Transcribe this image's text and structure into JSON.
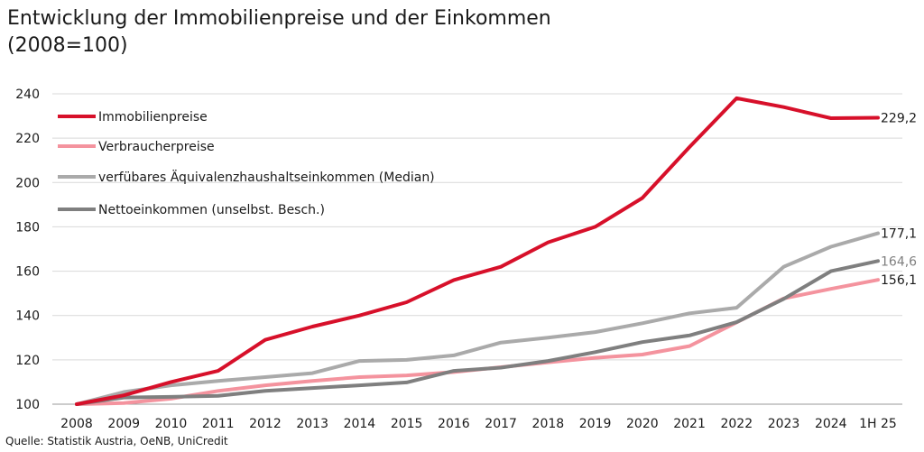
{
  "title_line1": "Entwicklung der Immobilienpreise und der Einkommen",
  "title_line2": "(2008=100)",
  "source": "Quelle: Statistik Austria, OeNB, UniCredit",
  "chart_data": {
    "type": "line",
    "x": [
      "2008",
      "2009",
      "2010",
      "2011",
      "2012",
      "2013",
      "2014",
      "2015",
      "2016",
      "2017",
      "2018",
      "2019",
      "2020",
      "2021",
      "2022",
      "2023",
      "2024",
      "1H 25"
    ],
    "ylim": [
      100,
      240
    ],
    "yticks": [
      100,
      120,
      140,
      160,
      180,
      200,
      220,
      240
    ],
    "grid": true,
    "legend_position": "top-left",
    "series": [
      {
        "name": "Immobilienpreise",
        "color": "#d7102a",
        "values": [
          100,
          104,
          110,
          115,
          129,
          135,
          140,
          146,
          156,
          162,
          173,
          180,
          193,
          216,
          238,
          234,
          229,
          229.2
        ],
        "end_label": "229,2"
      },
      {
        "name": "Verbraucherpreise",
        "color": "#f4939e",
        "values": [
          100,
          100.5,
          102.5,
          106,
          108.5,
          110.5,
          112.2,
          113,
          114.5,
          116.7,
          118.9,
          120.9,
          122.4,
          126.2,
          136.9,
          147.7,
          152,
          156.1
        ],
        "end_label": "156,1"
      },
      {
        "name": "verfübares Äquivalenzhaushaltseinkommen (Median)",
        "color": "#aaaaaa",
        "values": [
          100,
          105.5,
          108.5,
          110.5,
          112.2,
          114,
          119.5,
          120,
          122,
          127.8,
          130,
          132.5,
          136.5,
          141,
          143.5,
          162,
          171,
          177.1
        ],
        "end_label": "177,1"
      },
      {
        "name": "Nettoeinkommen (unselbst. Besch.)",
        "color": "#7f7f7f",
        "values": [
          100,
          103,
          103.3,
          103.8,
          106,
          107.3,
          108.5,
          109.8,
          115,
          116.5,
          119.5,
          123.5,
          128,
          131,
          137,
          147.5,
          160,
          164.6
        ],
        "end_label": "164,6"
      }
    ]
  }
}
